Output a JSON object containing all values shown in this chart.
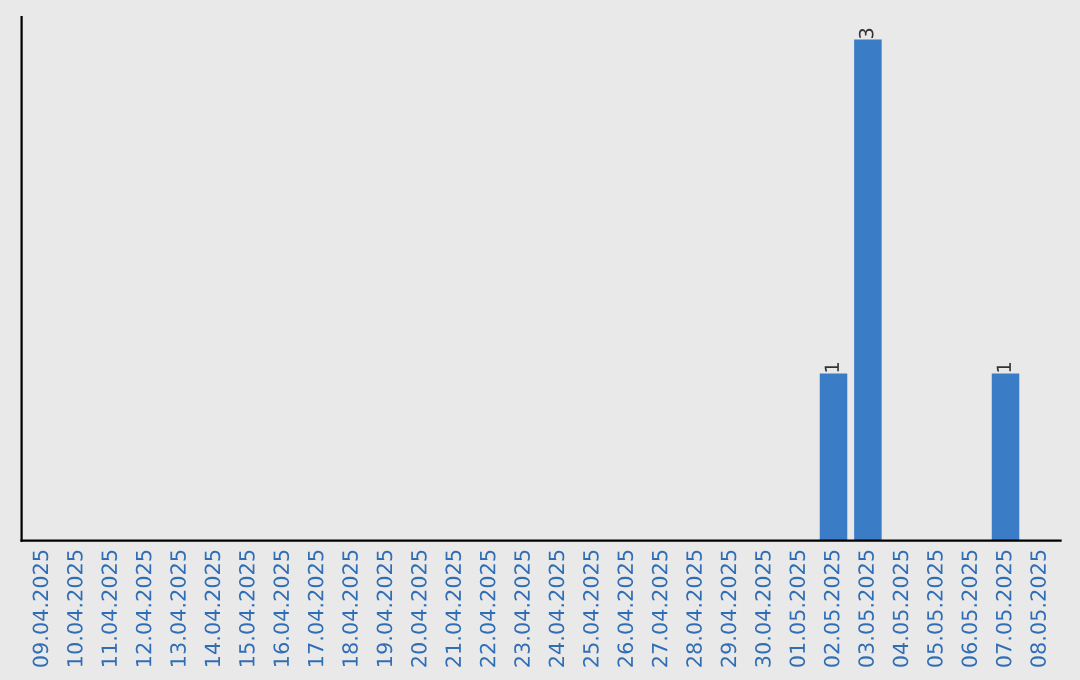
{
  "chart_data": {
    "type": "bar",
    "categories": [
      "09.04.2025",
      "10.04.2025",
      "11.04.2025",
      "12.04.2025",
      "13.04.2025",
      "14.04.2025",
      "15.04.2025",
      "16.04.2025",
      "17.04.2025",
      "18.04.2025",
      "19.04.2025",
      "20.04.2025",
      "21.04.2025",
      "22.04.2025",
      "23.04.2025",
      "24.04.2025",
      "25.04.2025",
      "26.04.2025",
      "27.04.2025",
      "28.04.2025",
      "29.04.2025",
      "30.04.2025",
      "01.05.2025",
      "02.05.2025",
      "03.05.2025",
      "04.05.2025",
      "05.05.2025",
      "06.05.2025",
      "07.05.2025",
      "08.05.2025"
    ],
    "values": [
      null,
      null,
      null,
      null,
      null,
      null,
      null,
      null,
      null,
      null,
      null,
      null,
      null,
      null,
      null,
      null,
      null,
      null,
      null,
      null,
      null,
      null,
      null,
      1,
      3,
      null,
      null,
      null,
      1,
      null
    ],
    "data_labels": true,
    "color": "#3a7cc5",
    "grid": false,
    "legend": false
  }
}
